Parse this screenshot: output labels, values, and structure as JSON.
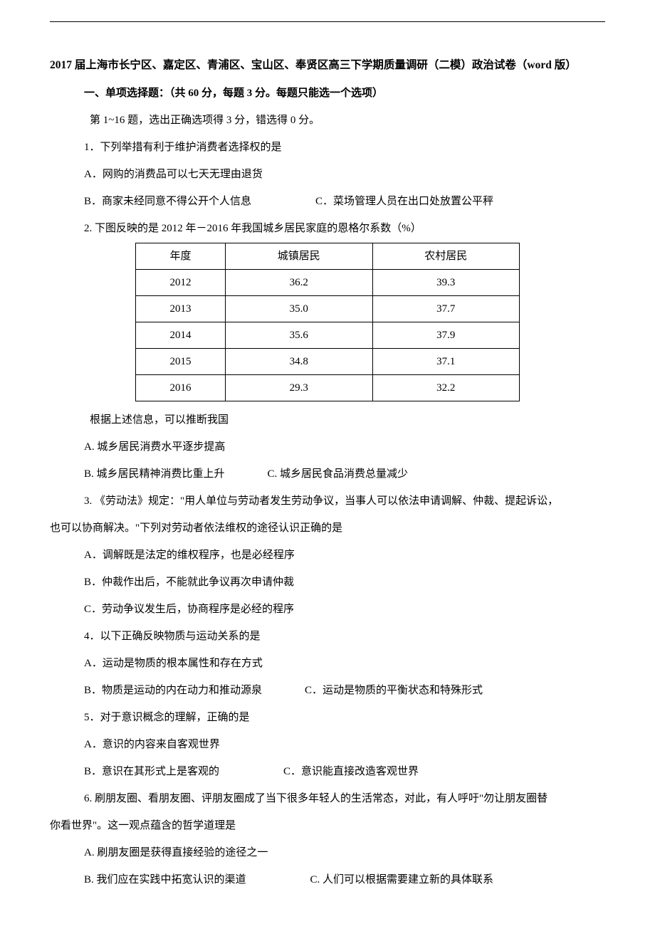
{
  "title": "2017 届上海市长宁区、嘉定区、青浦区、宝山区、奉贤区高三下学期质量调研（二模）政治试卷（word 版）",
  "section_header": "一、单项选择题：（共 60 分，每题 3 分。每题只能选一个选项）",
  "instruction": "第 1~16 题，选出正确选项得 3 分，错选得 0 分。",
  "q1": {
    "stem": "1．下列举措有利于维护消费者选择权的是",
    "A": "A．网购的消费品可以七天无理由退货",
    "B": "B．商家未经同意不得公开个人信息",
    "C": "C．菜场管理人员在出口处放置公平秤"
  },
  "q2": {
    "stem": "2. 下图反映的是 2012 年－2016 年我国城乡居民家庭的恩格尔系数（%）",
    "table": {
      "columns": [
        "年度",
        "城镇居民",
        "农村居民"
      ],
      "rows": [
        [
          "2012",
          "36.2",
          "39.3"
        ],
        [
          "2013",
          "35.0",
          "37.7"
        ],
        [
          "2014",
          "35.6",
          "37.9"
        ],
        [
          "2015",
          "34.8",
          "37.1"
        ],
        [
          "2016",
          "29.3",
          "32.2"
        ]
      ],
      "col_widths": [
        "33%",
        "33%",
        "34%"
      ],
      "border_color": "#000000",
      "cell_padding": "6px 8px",
      "text_align": "center"
    },
    "post": "根据上述信息，可以推断我国",
    "A": "A. 城乡居民消费水平逐步提高",
    "B": "B. 城乡居民精神消费比重上升",
    "C": "C. 城乡居民食品消费总量减少"
  },
  "q3": {
    "stem1": "3. 《劳动法》规定：\"用人单位与劳动者发生劳动争议，当事人可以依法申请调解、仲裁、提起诉讼，",
    "stem2": "也可以协商解决。\"下列对劳动者依法维权的途径认识正确的是",
    "A": "A．调解既是法定的维权程序，也是必经程序",
    "B": "B．仲裁作出后，不能就此争议再次申请仲裁",
    "C": "C．劳动争议发生后，协商程序是必经的程序"
  },
  "q4": {
    "stem": "4．以下正确反映物质与运动关系的是",
    "A": "A．运动是物质的根本属性和存在方式",
    "B": "B．物质是运动的内在动力和推动源泉",
    "C": "C．运动是物质的平衡状态和特殊形式"
  },
  "q5": {
    "stem": "5．对于意识概念的理解，正确的是",
    "A": "A．意识的内容来自客观世界",
    "B": "B．意识在其形式上是客观的",
    "C": "C．意识能直接改造客观世界"
  },
  "q6": {
    "stem1": "6. 刷朋友圈、看朋友圈、评朋友圈成了当下很多年轻人的生活常态，对此，有人呼吁\"勿让朋友圈替",
    "stem2": "你看世界\"。这一观点蕴含的哲学道理是",
    "A": "A. 刷朋友圈是获得直接经验的途径之一",
    "B": "B. 我们应在实践中拓宽认识的渠道",
    "C": "C. 人们可以根据需要建立新的具体联系"
  }
}
